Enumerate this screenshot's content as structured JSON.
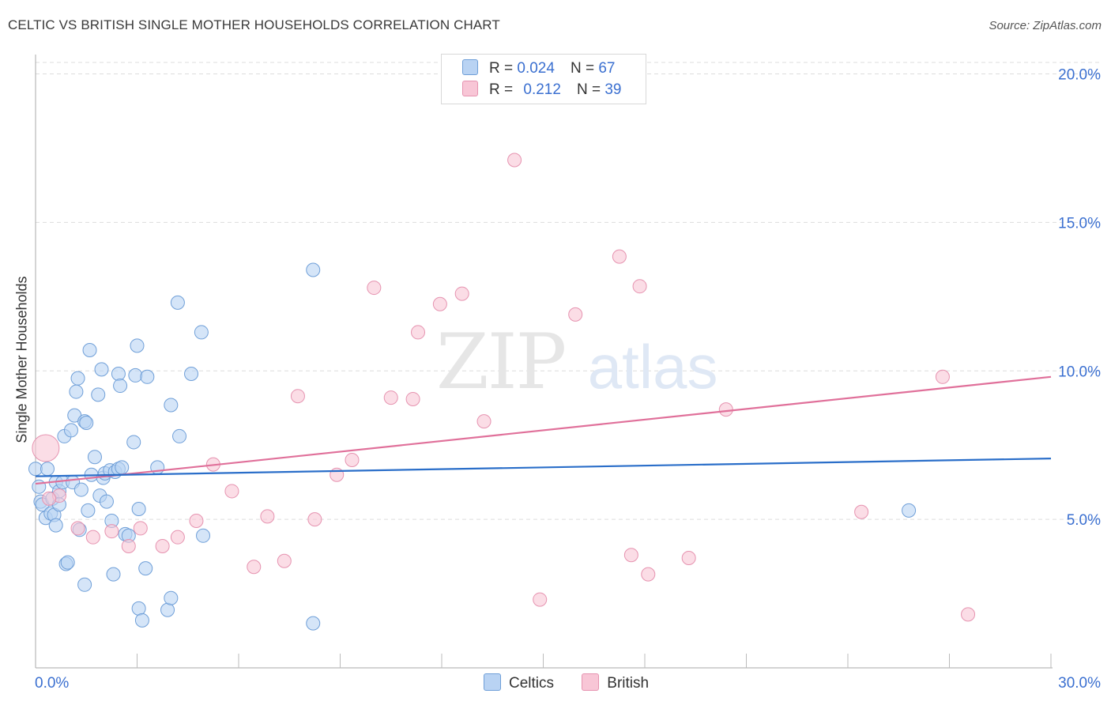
{
  "title": "CELTIC VS BRITISH SINGLE MOTHER HOUSEHOLDS CORRELATION CHART",
  "source": "Source: ZipAtlas.com",
  "watermark": {
    "zip": "ZIP",
    "atlas": "atlas"
  },
  "legend": {
    "celtic": {
      "r_label": "R =",
      "r_value": "0.024",
      "n_label": "N =",
      "n_value": "67"
    },
    "british": {
      "r_label": "R =",
      "r_value": "0.212",
      "n_label": "N =",
      "n_value": "39"
    }
  },
  "bottom_legend": {
    "celtic": "Celtics",
    "british": "British"
  },
  "colors": {
    "celtic_fill": "#b9d3f3",
    "celtic_stroke": "#6f9fd8",
    "celtic_line": "#2a6ec9",
    "british_fill": "#f8c6d6",
    "british_stroke": "#e693b0",
    "british_line": "#e0709a",
    "tick_label": "#3a6fd0",
    "grid": "#dddddd"
  },
  "chart_data": {
    "type": "scatter",
    "title": "CELTIC VS BRITISH SINGLE MOTHER HOUSEHOLDS CORRELATION CHART",
    "xlabel": "",
    "ylabel": "Single Mother Households",
    "xlim": [
      0,
      30
    ],
    "ylim": [
      0,
      20.6
    ],
    "x_tick_labels": [
      "0.0%",
      "30.0%"
    ],
    "y_ticks": [
      5,
      10,
      15,
      20
    ],
    "y_tick_labels": [
      "5.0%",
      "10.0%",
      "15.0%",
      "20.0%"
    ],
    "grid": true,
    "series": [
      {
        "name": "Celtics",
        "trend": [
          [
            0,
            6.45
          ],
          [
            30,
            7.05
          ]
        ],
        "points": [
          [
            0.0,
            6.7
          ],
          [
            0.1,
            6.1
          ],
          [
            0.15,
            5.6
          ],
          [
            0.2,
            5.5
          ],
          [
            0.3,
            5.05
          ],
          [
            0.35,
            6.7
          ],
          [
            0.45,
            5.2
          ],
          [
            0.5,
            5.7
          ],
          [
            0.55,
            5.15
          ],
          [
            0.6,
            6.25
          ],
          [
            0.6,
            4.8
          ],
          [
            0.7,
            5.95
          ],
          [
            0.7,
            5.5
          ],
          [
            0.8,
            6.25
          ],
          [
            0.85,
            7.8
          ],
          [
            0.9,
            3.5
          ],
          [
            0.95,
            3.55
          ],
          [
            1.05,
            8.0
          ],
          [
            1.1,
            6.25
          ],
          [
            1.15,
            8.5
          ],
          [
            1.2,
            9.3
          ],
          [
            1.25,
            9.75
          ],
          [
            1.3,
            4.65
          ],
          [
            1.35,
            6.0
          ],
          [
            1.45,
            8.3
          ],
          [
            1.45,
            2.8
          ],
          [
            1.5,
            8.25
          ],
          [
            1.55,
            5.3
          ],
          [
            1.6,
            10.7
          ],
          [
            1.65,
            6.5
          ],
          [
            1.75,
            7.1
          ],
          [
            1.85,
            9.2
          ],
          [
            1.9,
            5.8
          ],
          [
            1.95,
            10.05
          ],
          [
            2.0,
            6.4
          ],
          [
            2.05,
            6.55
          ],
          [
            2.1,
            5.6
          ],
          [
            2.2,
            6.65
          ],
          [
            2.25,
            4.95
          ],
          [
            2.3,
            3.15
          ],
          [
            2.35,
            6.6
          ],
          [
            2.45,
            6.7
          ],
          [
            2.45,
            9.9
          ],
          [
            2.5,
            9.5
          ],
          [
            2.55,
            6.75
          ],
          [
            2.65,
            4.5
          ],
          [
            2.75,
            4.45
          ],
          [
            2.9,
            7.6
          ],
          [
            2.95,
            9.85
          ],
          [
            3.0,
            10.85
          ],
          [
            3.05,
            2.0
          ],
          [
            3.05,
            5.35
          ],
          [
            3.15,
            1.6
          ],
          [
            3.25,
            3.35
          ],
          [
            3.3,
            9.8
          ],
          [
            3.6,
            6.75
          ],
          [
            3.9,
            1.95
          ],
          [
            4.0,
            2.35
          ],
          [
            4.0,
            8.85
          ],
          [
            4.2,
            12.3
          ],
          [
            4.25,
            7.8
          ],
          [
            4.6,
            9.9
          ],
          [
            4.9,
            11.3
          ],
          [
            4.95,
            4.45
          ],
          [
            8.2,
            13.4
          ],
          [
            8.2,
            1.5
          ],
          [
            25.8,
            5.3
          ]
        ]
      },
      {
        "name": "British",
        "trend": [
          [
            0,
            6.2
          ],
          [
            30,
            9.8
          ]
        ],
        "points": [
          [
            0.3,
            7.4
          ],
          [
            0.7,
            5.8
          ],
          [
            1.25,
            4.7
          ],
          [
            1.7,
            4.4
          ],
          [
            2.25,
            4.6
          ],
          [
            2.75,
            4.1
          ],
          [
            3.1,
            4.7
          ],
          [
            3.75,
            4.1
          ],
          [
            4.2,
            4.4
          ],
          [
            4.75,
            4.95
          ],
          [
            5.25,
            6.85
          ],
          [
            5.8,
            5.95
          ],
          [
            6.45,
            3.4
          ],
          [
            6.85,
            5.1
          ],
          [
            7.35,
            3.6
          ],
          [
            7.75,
            9.15
          ],
          [
            8.25,
            5.0
          ],
          [
            8.9,
            6.5
          ],
          [
            9.35,
            7.0
          ],
          [
            10.0,
            12.8
          ],
          [
            10.5,
            9.1
          ],
          [
            11.15,
            9.05
          ],
          [
            11.3,
            11.3
          ],
          [
            11.95,
            12.25
          ],
          [
            12.6,
            12.6
          ],
          [
            13.25,
            8.3
          ],
          [
            14.15,
            17.1
          ],
          [
            14.9,
            2.3
          ],
          [
            15.95,
            11.9
          ],
          [
            17.25,
            13.85
          ],
          [
            17.6,
            3.8
          ],
          [
            17.85,
            12.85
          ],
          [
            18.1,
            3.15
          ],
          [
            19.3,
            3.7
          ],
          [
            20.4,
            8.7
          ],
          [
            24.4,
            5.25
          ],
          [
            26.8,
            9.8
          ],
          [
            27.55,
            1.8
          ],
          [
            0.4,
            5.7
          ]
        ]
      }
    ]
  }
}
